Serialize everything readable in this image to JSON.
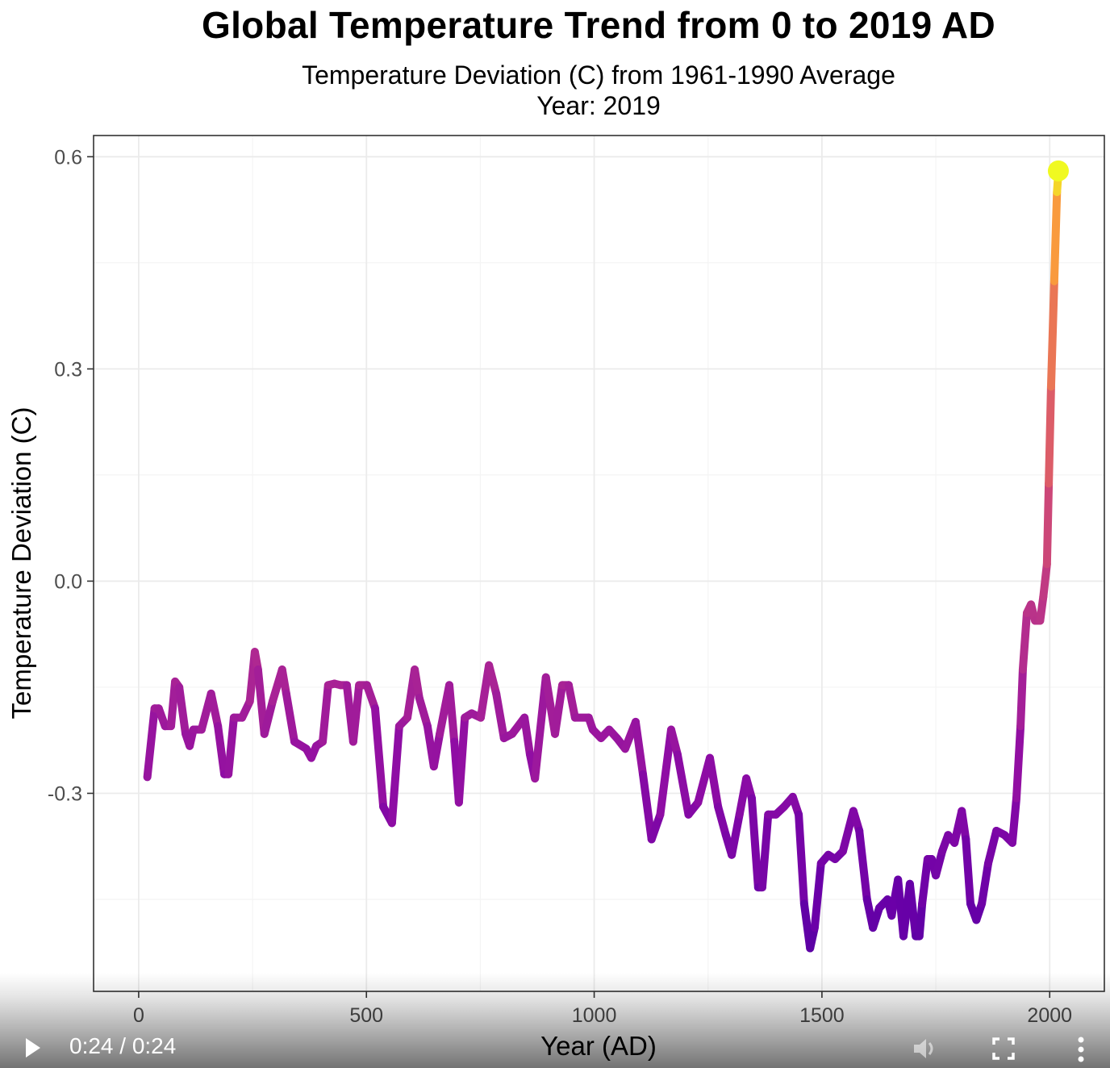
{
  "chart_data": {
    "type": "line",
    "title": "Global Temperature Trend from 0 to 2019 AD",
    "subtitle": "Temperature Deviation (C) from 1961-1990 Average",
    "frame_label": "Year:  2019",
    "xlabel": "Year (AD)",
    "ylabel": "Temperature Deviation (C)",
    "xlim": [
      -99,
      2120
    ],
    "ylim": [
      -0.58,
      0.63
    ],
    "xticks": [
      0,
      500,
      1000,
      1500,
      2000
    ],
    "xtick_labels": [
      "0",
      "500",
      "1000",
      "1500",
      "2000"
    ],
    "yticks": [
      -0.3,
      0.0,
      0.3,
      0.6
    ],
    "ytick_labels": [
      "-0.3",
      "0.0",
      "0.3",
      "0.6"
    ],
    "grid": true,
    "legend": "none",
    "color_scale": "plasma (by year)",
    "current_point": {
      "year": 2019,
      "value": 0.58,
      "color": "#F0F921"
    },
    "series": [
      {
        "name": "Temperature Deviation",
        "x": [
          19,
          35,
          44,
          58,
          71,
          80,
          89,
          103,
          112,
          120,
          138,
          159,
          174,
          188,
          197,
          209,
          227,
          244,
          255,
          262,
          276,
          294,
          315,
          324,
          342,
          368,
          379,
          390,
          404,
          416,
          430,
          443,
          457,
          471,
          484,
          501,
          519,
          537,
          556,
          572,
          590,
          606,
          616,
          634,
          648,
          661,
          682,
          693,
          703,
          716,
          731,
          751,
          769,
          785,
          802,
          820,
          847,
          859,
          870,
          894,
          914,
          930,
          944,
          958,
          988,
          997,
          1015,
          1033,
          1050,
          1068,
          1091,
          1107,
          1126,
          1145,
          1169,
          1183,
          1207,
          1228,
          1254,
          1272,
          1289,
          1302,
          1319,
          1334,
          1346,
          1360,
          1369,
          1382,
          1399,
          1417,
          1436,
          1449,
          1461,
          1474,
          1484,
          1498,
          1514,
          1529,
          1546,
          1569,
          1582,
          1599,
          1612,
          1626,
          1644,
          1653,
          1667,
          1679,
          1693,
          1706,
          1714,
          1720,
          1732,
          1741,
          1750,
          1764,
          1777,
          1791,
          1807,
          1816,
          1826,
          1839,
          1851,
          1865,
          1883,
          1901,
          1918,
          1927,
          1936,
          1941,
          1950,
          1959,
          1968,
          1979,
          1986,
          1994,
          1998,
          2003,
          2010,
          2016,
          2019
        ],
        "y": [
          -0.277,
          -0.18,
          -0.18,
          -0.205,
          -0.205,
          -0.142,
          -0.15,
          -0.216,
          -0.233,
          -0.21,
          -0.21,
          -0.159,
          -0.205,
          -0.273,
          -0.273,
          -0.193,
          -0.193,
          -0.17,
          -0.1,
          -0.125,
          -0.216,
          -0.17,
          -0.125,
          -0.159,
          -0.227,
          -0.237,
          -0.25,
          -0.233,
          -0.227,
          -0.147,
          -0.145,
          -0.147,
          -0.147,
          -0.227,
          -0.147,
          -0.147,
          -0.18,
          -0.319,
          -0.342,
          -0.205,
          -0.193,
          -0.125,
          -0.165,
          -0.205,
          -0.262,
          -0.216,
          -0.147,
          -0.227,
          -0.313,
          -0.193,
          -0.187,
          -0.193,
          -0.119,
          -0.159,
          -0.222,
          -0.216,
          -0.193,
          -0.245,
          -0.279,
          -0.136,
          -0.216,
          -0.147,
          -0.147,
          -0.193,
          -0.193,
          -0.21,
          -0.222,
          -0.21,
          -0.222,
          -0.237,
          -0.199,
          -0.273,
          -0.365,
          -0.33,
          -0.21,
          -0.245,
          -0.33,
          -0.313,
          -0.25,
          -0.319,
          -0.359,
          -0.387,
          -0.33,
          -0.279,
          -0.307,
          -0.433,
          -0.433,
          -0.33,
          -0.33,
          -0.319,
          -0.305,
          -0.33,
          -0.456,
          -0.519,
          -0.49,
          -0.399,
          -0.387,
          -0.393,
          -0.382,
          -0.325,
          -0.353,
          -0.45,
          -0.49,
          -0.462,
          -0.45,
          -0.473,
          -0.422,
          -0.502,
          -0.428,
          -0.502,
          -0.502,
          -0.456,
          -0.393,
          -0.393,
          -0.416,
          -0.382,
          -0.359,
          -0.37,
          -0.325,
          -0.365,
          -0.456,
          -0.479,
          -0.456,
          -0.399,
          -0.353,
          -0.359,
          -0.37,
          -0.307,
          -0.205,
          -0.125,
          -0.045,
          -0.033,
          -0.056,
          -0.056,
          -0.022,
          0.024,
          0.138,
          0.275,
          0.424,
          0.55,
          0.577
        ]
      }
    ]
  },
  "player": {
    "time_display": "0:24 / 0:24",
    "play_icon": "play-icon",
    "volume_icon": "volume-icon",
    "fullscreen_icon": "fullscreen-icon",
    "more_icon": "more-vertical-icon"
  }
}
